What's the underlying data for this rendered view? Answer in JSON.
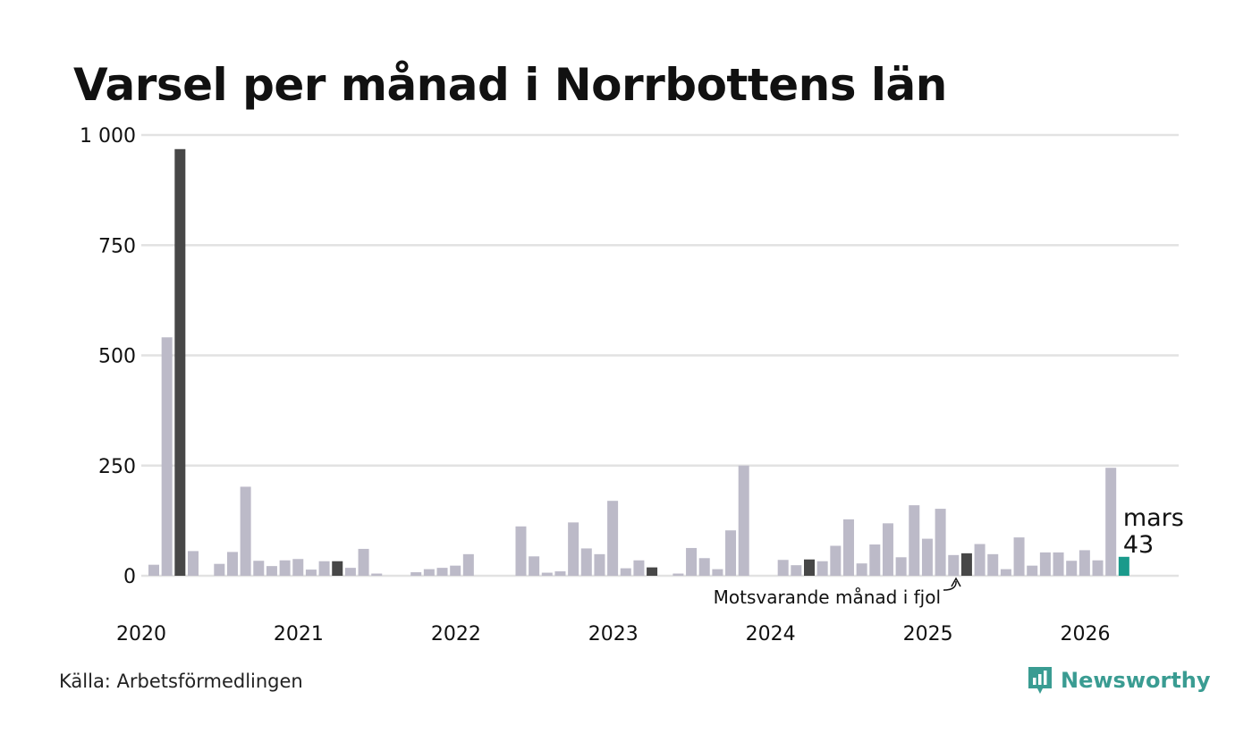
{
  "title": "Varsel per månad i Norrbottens län",
  "source": "Källa: Arbetsförmedlingen",
  "brand": {
    "name": "Newsworthy",
    "icon": "newsworthy-logo-icon",
    "color": "#3a9c92"
  },
  "colors": {
    "bar": "#bcbac8",
    "same_month": "#474747",
    "current": "#1a9a8b",
    "grid": "#e2e2e2"
  },
  "chart_data": {
    "type": "bar",
    "title": "Varsel per månad i Norrbottens län",
    "xlabel": "",
    "ylabel": "",
    "ylim": [
      0,
      1000
    ],
    "yticks": [
      0,
      250,
      500,
      750,
      1000
    ],
    "ytick_labels": [
      "0",
      "250",
      "500",
      "750",
      "1 000"
    ],
    "year_labels": [
      {
        "label": "2020",
        "index": 0
      },
      {
        "label": "2021",
        "index": 12
      },
      {
        "label": "2022",
        "index": 24
      },
      {
        "label": "2023",
        "index": 36
      },
      {
        "label": "2024",
        "index": 48
      },
      {
        "label": "2025",
        "index": 60
      },
      {
        "label": "2026",
        "index": 72
      }
    ],
    "start": "2020-01",
    "values": [
      25,
      541,
      968,
      56,
      0,
      27,
      54,
      202,
      34,
      22,
      35,
      38,
      14,
      33,
      33,
      18,
      61,
      5,
      0,
      0,
      8,
      15,
      18,
      23,
      49,
      0,
      0,
      0,
      112,
      44,
      7,
      10,
      121,
      62,
      49,
      170,
      17,
      35,
      19,
      0,
      5,
      63,
      40,
      15,
      103,
      250,
      0,
      0,
      36,
      24,
      37,
      33,
      68,
      128,
      28,
      71,
      119,
      42,
      160,
      84,
      152,
      47,
      51,
      72,
      49,
      15,
      87,
      23,
      53,
      53,
      34,
      58,
      35,
      245,
      43
    ],
    "same_month_indices": [
      2,
      14,
      38,
      50,
      62,
      74
    ],
    "highlight": {
      "index": 74,
      "month_label": "mars",
      "value": 43
    },
    "annotation": {
      "text": "Motsvarande månad i fjol",
      "points_to_index": 62
    }
  }
}
